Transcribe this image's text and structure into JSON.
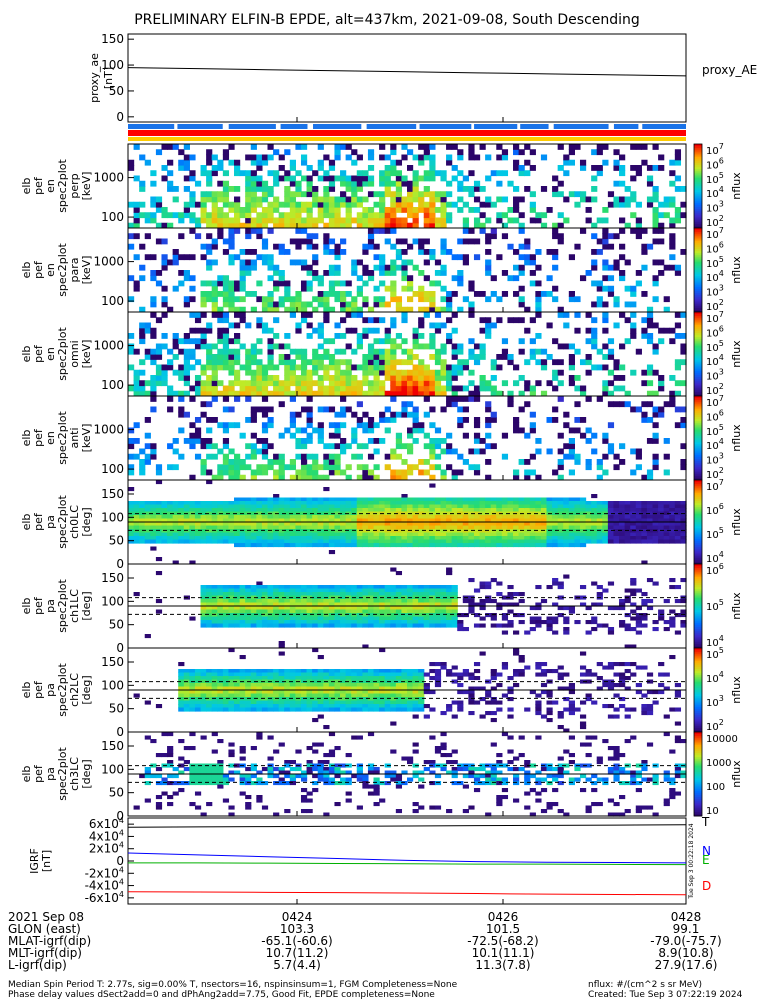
{
  "title": "PRELIMINARY ELFIN-B EPDE, alt=437km, 2021-09-08, South Descending",
  "chart_data": [
    {
      "type": "line",
      "name": "proxy_ae",
      "ylabel_lines": [
        "proxy_ae",
        "[nT]"
      ],
      "legend": "proxy_AE",
      "ylim": [
        -10,
        160
      ],
      "yticks": [
        "0",
        "50",
        "100",
        "150"
      ],
      "y": [
        95,
        93,
        91,
        89,
        87,
        85,
        83,
        81,
        79
      ]
    },
    {
      "type": "heatmap",
      "name": "spectrogram-perp",
      "ylabel_lines": [
        "elb",
        "pef",
        "en",
        "spec2plot",
        "perp",
        "[keV]"
      ],
      "yticks": [
        "100",
        "1000"
      ],
      "colorbar": {
        "label": "nflux",
        "ticks": [
          "10^2",
          "10^3",
          "10^4",
          "10^5",
          "10^6",
          "10^7"
        ]
      }
    },
    {
      "type": "heatmap",
      "name": "spectrogram-para",
      "ylabel_lines": [
        "elb",
        "pef",
        "en",
        "spec2plot",
        "para",
        "[keV]"
      ],
      "yticks": [
        "100",
        "1000"
      ],
      "colorbar": {
        "label": "nflux",
        "ticks": [
          "10^2",
          "10^3",
          "10^4",
          "10^5",
          "10^6",
          "10^7"
        ]
      }
    },
    {
      "type": "heatmap",
      "name": "spectrogram-omni",
      "ylabel_lines": [
        "elb",
        "pef",
        "en",
        "spec2plot",
        "omni",
        "[keV]"
      ],
      "yticks": [
        "100",
        "1000"
      ],
      "colorbar": {
        "label": "nflux",
        "ticks": [
          "10^2",
          "10^3",
          "10^4",
          "10^5",
          "10^6",
          "10^7"
        ]
      }
    },
    {
      "type": "heatmap",
      "name": "spectrogram-anti",
      "ylabel_lines": [
        "elb",
        "pef",
        "en",
        "spec2plot",
        "anti",
        "[keV]"
      ],
      "yticks": [
        "100",
        "1000"
      ],
      "colorbar": {
        "label": "nflux",
        "ticks": [
          "10^2",
          "10^3",
          "10^4",
          "10^5",
          "10^6",
          "10^7"
        ]
      }
    },
    {
      "type": "heatmap",
      "name": "pitch-angle-ch0",
      "ylabel_lines": [
        "elb",
        "pef",
        "pa",
        "spec2plot",
        "ch0LC",
        "[deg]"
      ],
      "yticks": [
        "0",
        "50",
        "100",
        "150"
      ],
      "colorbar": {
        "label": "nflux",
        "ticks": [
          "10^4",
          "10^5",
          "10^6",
          "10^7"
        ]
      }
    },
    {
      "type": "heatmap",
      "name": "pitch-angle-ch1",
      "ylabel_lines": [
        "elb",
        "pef",
        "pa",
        "spec2plot",
        "ch1LC",
        "[deg]"
      ],
      "yticks": [
        "0",
        "50",
        "100",
        "150"
      ],
      "colorbar": {
        "label": "nflux",
        "ticks": [
          "10^4",
          "10^5",
          "10^6"
        ]
      }
    },
    {
      "type": "heatmap",
      "name": "pitch-angle-ch2",
      "ylabel_lines": [
        "elb",
        "pef",
        "pa",
        "spec2plot",
        "ch2LC",
        "[deg]"
      ],
      "yticks": [
        "0",
        "50",
        "100",
        "150"
      ],
      "colorbar": {
        "label": "nflux",
        "ticks": [
          "10^2",
          "10^3",
          "10^4",
          "10^5"
        ]
      }
    },
    {
      "type": "heatmap",
      "name": "pitch-angle-ch3",
      "ylabel_lines": [
        "elb",
        "pef",
        "pa",
        "spec2plot",
        "ch3LC",
        "[deg]"
      ],
      "yticks": [
        "0",
        "50",
        "100",
        "150"
      ],
      "colorbar": {
        "label": "nflux",
        "ticks": [
          "10",
          "100",
          "1000",
          "10000"
        ]
      }
    },
    {
      "type": "line",
      "name": "igrf",
      "ylabel_lines": [
        "IGRF",
        "[nT]"
      ],
      "ylim": [
        -70000,
        70000
      ],
      "yticks": [
        "-6x10^4",
        "-4x10^4",
        "-2x10^4",
        "0",
        "2x10^4",
        "4x10^4",
        "6x10^4"
      ],
      "series": [
        {
          "name": "N",
          "values": [
            13000,
            10000,
            7000,
            4000,
            1000,
            -1000,
            -2000,
            -2500,
            -3000
          ]
        },
        {
          "name": "E",
          "values": [
            -3000,
            -3000,
            -3500,
            -4000,
            -4500,
            -5000,
            -5000,
            -5500,
            -6000
          ]
        },
        {
          "name": "D",
          "values": [
            -50000,
            -50500,
            -51000,
            -51500,
            -52000,
            -53000,
            -54000,
            -54500,
            -55000
          ]
        },
        {
          "name": "T",
          "values": [
            55000,
            55500,
            56000,
            56500,
            57000,
            57500,
            58000,
            58500,
            59000
          ]
        }
      ]
    }
  ],
  "side_text": "Tue Sep 3 00:22:18 2024",
  "xaxis": {
    "tick_labels": [
      "0424",
      "0426",
      "0428"
    ],
    "rows": [
      {
        "label": "2021 Sep 08",
        "values": [
          "0424",
          "0426",
          "0428"
        ]
      },
      {
        "label": "GLON (east)",
        "values": [
          "103.3",
          "101.5",
          "99.1"
        ]
      },
      {
        "label": "MLAT-igrf(dip)",
        "values": [
          "-65.1(-60.6)",
          "-72.5(-68.2)",
          "-79.0(-75.7)"
        ]
      },
      {
        "label": "MLT-igrf(dip)",
        "values": [
          "10.7(11.2)",
          "10.1(11.1)",
          "8.9(10.8)"
        ]
      },
      {
        "label": "L-igrf(dip)",
        "values": [
          "5.7(4.4)",
          "11.3(7.8)",
          "27.9(17.6)"
        ]
      }
    ]
  },
  "footer": {
    "left1": "Median Spin Period T: 2.77s, sig=0.00% T, nsectors=16, nspinsinsum=1, FGM Completeness=None",
    "left2": "Phase delay values dSect2add=0 and dPhAng2add=7.75, Good Fit, EPDE completeness=None",
    "right1": "nflux: #/(cm^2 s sr MeV)",
    "right2": "Created: Tue Sep  3 07:22:19 2024"
  },
  "colors": {
    "blue_bar": "#1a73e8",
    "red_bar": "#ff0000",
    "yellow_bar": "#ffcc00",
    "N": "#0000ff",
    "E": "#00b000",
    "D": "#ff0000",
    "T": "#000000"
  }
}
